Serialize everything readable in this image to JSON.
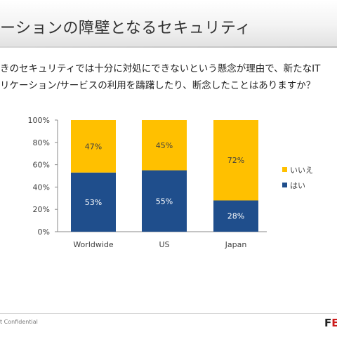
{
  "slide": {
    "title": "ーションの障壁となるセキュリティ",
    "question_line1": "きのセキュリティでは十分に対処にできないという懸念が理由で、新たなIT",
    "question_line2": "リケーション/サービスの利用を躊躇したり、断念したことはありますか？",
    "footer": "t Confidential",
    "logo_main": "F",
    "logo_accent": "E"
  },
  "chart_data": {
    "type": "bar",
    "stacked": true,
    "categories": [
      "Worldwide",
      "US",
      "Japan"
    ],
    "series": [
      {
        "name": "はい",
        "values": [
          53,
          55,
          28
        ],
        "labels": [
          "53%",
          "55%",
          "28%"
        ],
        "color": "#1f4e8c",
        "label_color": "#ffffff"
      },
      {
        "name": "いいえ",
        "values": [
          47,
          45,
          72
        ],
        "labels": [
          "47%",
          "45%",
          "72%"
        ],
        "color": "#ffc000",
        "label_color": "#404040"
      }
    ],
    "ylim": [
      0,
      100
    ],
    "yticks": [
      "0%",
      "20%",
      "40%",
      "60%",
      "80%",
      "100%"
    ],
    "ytick_values": [
      0,
      20,
      40,
      60,
      80,
      100
    ],
    "legend": [
      {
        "label": "いいえ",
        "color": "#ffc000"
      },
      {
        "label": "はい",
        "color": "#1f4e8c"
      }
    ],
    "legend_position": "right",
    "grid": false
  }
}
